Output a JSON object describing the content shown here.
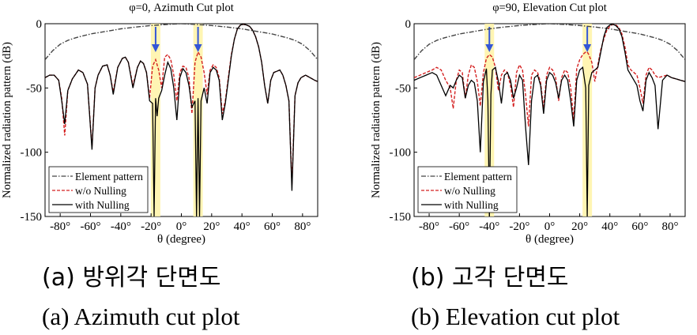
{
  "chart_data": [
    {
      "type": "line",
      "title": "φ=0, Azimuth Cut plot",
      "xlabel": "θ (degree)",
      "ylabel": "Normalized radiation pattern (dB)",
      "xlim": [
        -90,
        90
      ],
      "ylim": [
        -150,
        0
      ],
      "xticks": [
        -80,
        -60,
        -40,
        -20,
        0,
        20,
        40,
        60,
        80
      ],
      "xtick_labels": [
        "-80°",
        "-60°",
        "-40°",
        "-20°",
        "0°",
        "20°",
        "40°",
        "60°",
        "80°"
      ],
      "yticks": [
        0,
        -50,
        -100,
        -150
      ],
      "ytick_labels": [
        "0",
        "-50",
        "-100",
        "-150"
      ],
      "legend": [
        "Element pattern",
        "w/o Nulling",
        "with Nulling"
      ],
      "legend_position": "bottom-left",
      "null_markers": [
        -17,
        11
      ],
      "series": [
        {
          "name": "Element pattern",
          "color": "#444444",
          "style": "dashdot",
          "x": [
            -90,
            -85,
            -80,
            -75,
            -70,
            -60,
            -50,
            -40,
            -30,
            -20,
            -10,
            0,
            10,
            20,
            30,
            40,
            50,
            60,
            70,
            75,
            80,
            85,
            90
          ],
          "y": [
            -28,
            -21,
            -16,
            -13,
            -11,
            -8,
            -6,
            -4,
            -2.6,
            -1.4,
            -0.6,
            0,
            -0.6,
            -1.4,
            -2.6,
            -4,
            -6,
            -8,
            -11,
            -13,
            -16,
            -21,
            -28
          ]
        },
        {
          "name": "w/o Nulling",
          "color": "#d42020",
          "style": "dashed",
          "x": [
            -90,
            -87,
            -84,
            -81,
            -79,
            -77,
            -75,
            -72,
            -68,
            -65,
            -62,
            -59,
            -57,
            -55,
            -52,
            -49,
            -47,
            -45,
            -42,
            -39,
            -37,
            -35,
            -32,
            -29,
            -27,
            -25,
            -23,
            -21,
            -19,
            -17,
            -15,
            -13,
            -11,
            -9,
            -7,
            -5,
            -3,
            -1,
            1,
            3,
            5,
            7,
            9,
            11,
            13,
            15,
            17,
            19,
            21,
            23,
            25,
            27,
            29,
            31,
            33,
            35,
            37,
            39,
            41,
            43,
            45,
            47,
            49,
            51,
            53,
            55,
            57,
            59,
            61,
            63,
            65,
            67,
            69,
            71,
            73,
            75,
            77,
            79,
            82,
            85,
            88,
            90
          ],
          "y": [
            -42,
            -40,
            -40,
            -44,
            -58,
            -87,
            -52,
            -43,
            -36,
            -38,
            -47,
            -96,
            -50,
            -40,
            -33,
            -32,
            -40,
            -53,
            -34,
            -27,
            -26,
            -30,
            -48,
            -34,
            -29,
            -31,
            -38,
            -58,
            -33,
            -28,
            -36,
            -50,
            -26,
            -24,
            -28,
            -40,
            -60,
            -38,
            -33,
            -34,
            -42,
            -70,
            -30,
            -22,
            -26,
            -38,
            -55,
            -36,
            -32,
            -34,
            -42,
            -70,
            -60,
            -42,
            -24,
            -12,
            -4,
            -1,
            -0.5,
            -1,
            -2,
            -5,
            -10,
            -18,
            -30,
            -48,
            -62,
            -44,
            -38,
            -37,
            -36,
            -40,
            -48,
            -60,
            -125,
            -56,
            -46,
            -42,
            -40,
            -42,
            -44,
            -45
          ]
        },
        {
          "name": "with Nulling",
          "color": "#000000",
          "style": "solid",
          "x": [
            -90,
            -87,
            -84,
            -81,
            -79,
            -77,
            -75,
            -72,
            -68,
            -65,
            -62,
            -59,
            -57,
            -55,
            -52,
            -49,
            -47,
            -45,
            -42,
            -39,
            -37,
            -35,
            -32,
            -29,
            -27,
            -25,
            -23,
            -21,
            -19,
            -18,
            -17,
            -16,
            -15,
            -13,
            -11,
            -9,
            -7,
            -5,
            -3,
            -1,
            1,
            3,
            5,
            7,
            9,
            10,
            11,
            12,
            13,
            15,
            17,
            19,
            21,
            23,
            25,
            27,
            29,
            31,
            33,
            35,
            37,
            39,
            41,
            43,
            45,
            47,
            49,
            51,
            53,
            55,
            57,
            59,
            61,
            63,
            65,
            67,
            69,
            71,
            73,
            75,
            77,
            79,
            82,
            85,
            88,
            90
          ],
          "y": [
            -42,
            -40,
            -40,
            -44,
            -60,
            -78,
            -52,
            -43,
            -36,
            -38,
            -47,
            -98,
            -50,
            -40,
            -33,
            -32,
            -40,
            -55,
            -34,
            -27,
            -26,
            -30,
            -50,
            -34,
            -29,
            -31,
            -38,
            -60,
            -62,
            -150,
            -58,
            -72,
            -58,
            -52,
            -40,
            -30,
            -35,
            -50,
            -75,
            -42,
            -35,
            -38,
            -48,
            -65,
            -60,
            -150,
            -58,
            -150,
            -60,
            -50,
            -62,
            -38,
            -34,
            -36,
            -44,
            -75,
            -62,
            -44,
            -25,
            -12,
            -4,
            -1,
            -0.5,
            -1,
            -2,
            -5,
            -10,
            -18,
            -30,
            -48,
            -62,
            -44,
            -38,
            -37,
            -36,
            -40,
            -48,
            -60,
            -130,
            -56,
            -46,
            -42,
            -40,
            -42,
            -44,
            -45
          ]
        }
      ]
    },
    {
      "type": "line",
      "title": "φ=90, Elevation Cut plot",
      "xlabel": "θ (degree)",
      "ylabel": "Normalized radiation pattern (dB)",
      "xlim": [
        -90,
        90
      ],
      "ylim": [
        -150,
        0
      ],
      "xticks": [
        -80,
        -60,
        -40,
        -20,
        0,
        20,
        40,
        60,
        80
      ],
      "xtick_labels": [
        "-80°",
        "-60°",
        "-40°",
        "-20°",
        "0°",
        "20°",
        "40°",
        "60°",
        "80°"
      ],
      "yticks": [
        0,
        -50,
        -100,
        -150
      ],
      "ytick_labels": [
        "0",
        "-50",
        "-100",
        "-150"
      ],
      "legend": [
        "Element pattern",
        "w/o Nulling",
        "with Nulling"
      ],
      "legend_position": "bottom-left",
      "null_markers": [
        -40,
        25
      ],
      "series": [
        {
          "name": "Element pattern",
          "color": "#444444",
          "style": "dashdot",
          "x": [
            -90,
            -85,
            -80,
            -75,
            -70,
            -60,
            -50,
            -40,
            -30,
            -20,
            -10,
            0,
            10,
            20,
            30,
            40,
            50,
            60,
            70,
            75,
            80,
            85,
            90
          ],
          "y": [
            -28,
            -21,
            -16,
            -13,
            -11,
            -8,
            -6,
            -4,
            -2.6,
            -1.4,
            -0.6,
            0,
            -0.6,
            -1.4,
            -2.6,
            -4,
            -6,
            -8,
            -11,
            -13,
            -16,
            -21,
            -28
          ]
        },
        {
          "name": "w/o Nulling",
          "color": "#d42020",
          "style": "dashed",
          "x": [
            -90,
            -86,
            -82,
            -78,
            -75,
            -72,
            -69,
            -66,
            -64,
            -62,
            -60,
            -58,
            -56,
            -54,
            -52,
            -50,
            -48,
            -46,
            -44,
            -42,
            -40,
            -38,
            -36,
            -34,
            -32,
            -30,
            -28,
            -26,
            -24,
            -22,
            -20,
            -18,
            -16,
            -14,
            -12,
            -10,
            -8,
            -6,
            -4,
            -2,
            0,
            2,
            4,
            6,
            8,
            10,
            12,
            14,
            16,
            18,
            20,
            22,
            24,
            25,
            26,
            28,
            30,
            32,
            34,
            36,
            38,
            40,
            42,
            44,
            46,
            48,
            50,
            52,
            54,
            56,
            58,
            60,
            62,
            64,
            66,
            68,
            70,
            72,
            75,
            78,
            81,
            84,
            87,
            90
          ],
          "y": [
            -42,
            -40,
            -38,
            -36,
            -34,
            -36,
            -44,
            -50,
            -66,
            -44,
            -36,
            -38,
            -58,
            -40,
            -32,
            -34,
            -45,
            -64,
            -38,
            -27,
            -24,
            -26,
            -34,
            -52,
            -40,
            -36,
            -38,
            -48,
            -65,
            -38,
            -32,
            -36,
            -55,
            -80,
            -40,
            -36,
            -38,
            -46,
            -66,
            -40,
            -34,
            -36,
            -42,
            -60,
            -42,
            -36,
            -38,
            -50,
            -75,
            -35,
            -28,
            -24,
            -22,
            -22,
            -24,
            -30,
            -45,
            -32,
            -20,
            -12,
            -5,
            -2,
            -0.5,
            -1,
            -3,
            -8,
            -18,
            -32,
            -36,
            -38,
            -40,
            -50,
            -62,
            -40,
            -34,
            -36,
            -40,
            -42,
            -41,
            -40,
            -42,
            -43,
            -44,
            -45
          ]
        },
        {
          "name": "with Nulling",
          "color": "#000000",
          "style": "solid",
          "x": [
            -90,
            -86,
            -82,
            -78,
            -75,
            -72,
            -69,
            -66,
            -64,
            -62,
            -60,
            -58,
            -56,
            -54,
            -52,
            -50,
            -48,
            -46,
            -44,
            -42,
            -41,
            -40,
            -39,
            -38,
            -36,
            -34,
            -32,
            -30,
            -28,
            -26,
            -24,
            -22,
            -20,
            -18,
            -16,
            -14,
            -12,
            -10,
            -8,
            -6,
            -4,
            -2,
            0,
            2,
            4,
            6,
            8,
            10,
            12,
            14,
            16,
            18,
            20,
            22,
            24,
            25,
            26,
            28,
            30,
            32,
            34,
            36,
            38,
            40,
            42,
            44,
            46,
            48,
            50,
            52,
            54,
            56,
            58,
            60,
            62,
            64,
            66,
            68,
            70,
            72,
            75,
            78,
            81,
            84,
            87,
            90
          ],
          "y": [
            -44,
            -42,
            -40,
            -38,
            -40,
            -48,
            -56,
            -48,
            -50,
            -44,
            -40,
            -42,
            -58,
            -48,
            -44,
            -46,
            -60,
            -100,
            -45,
            -35,
            -60,
            -150,
            -55,
            -36,
            -34,
            -45,
            -62,
            -40,
            -38,
            -44,
            -58,
            -50,
            -40,
            -44,
            -80,
            -110,
            -60,
            -42,
            -40,
            -48,
            -70,
            -44,
            -38,
            -40,
            -46,
            -58,
            -44,
            -40,
            -44,
            -60,
            -80,
            -44,
            -36,
            -34,
            -50,
            -150,
            -48,
            -38,
            -36,
            -34,
            -22,
            -10,
            -3,
            -1,
            -0.5,
            -1.5,
            -4,
            -10,
            -22,
            -36,
            -40,
            -44,
            -48,
            -60,
            -68,
            -44,
            -38,
            -42,
            -48,
            -82,
            -44,
            -40,
            -42,
            -43,
            -44,
            -45
          ]
        }
      ]
    }
  ],
  "captions": {
    "a_korean": "(a) 방위각 단면도",
    "a_english": "(a) Azimuth cut plot",
    "b_korean": "(b) 고각 단면도",
    "b_english": "(b) Elevation cut plot"
  }
}
